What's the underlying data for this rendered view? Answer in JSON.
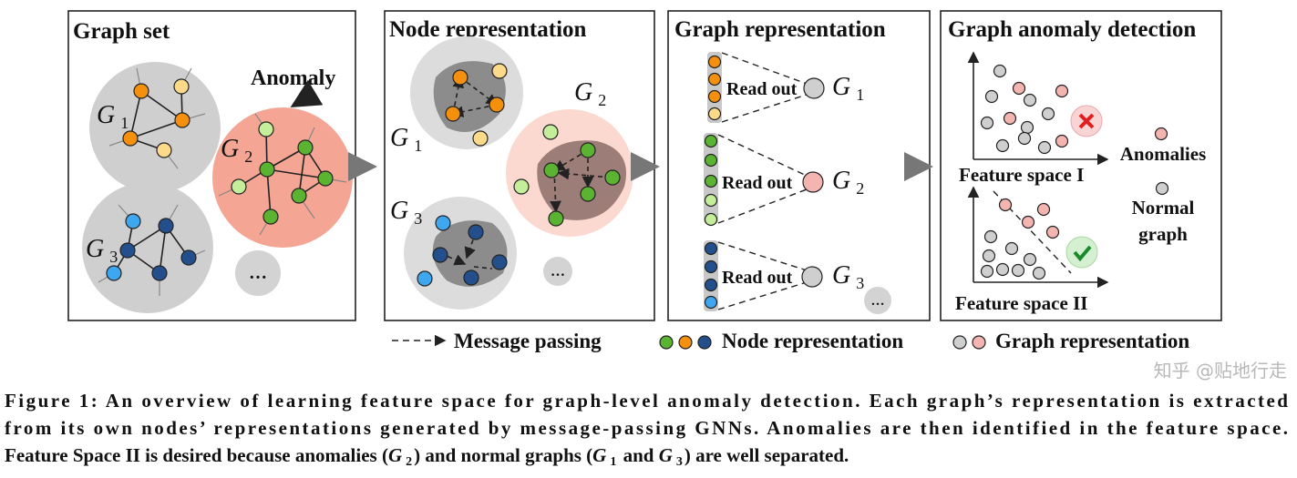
{
  "panels": {
    "graph_set": {
      "title": "Graph set",
      "anomaly_label": "Anomaly"
    },
    "node_representation": {
      "title": "Node representation"
    },
    "graph_representation": {
      "title": "Graph representation",
      "readout_label": "Read out"
    },
    "graph_anomaly_detection": {
      "title": "Graph anomaly detection",
      "space1": "Feature space I",
      "space2": "Feature space II",
      "legend_anomalies": "Anomalies",
      "legend_normal_1": "Normal",
      "legend_normal_2": "graph"
    }
  },
  "graph_labels": {
    "symbol": "G",
    "g1": "1",
    "g2": "2",
    "g3": "3"
  },
  "ellipsis": "…",
  "legend": {
    "message_passing": "Message passing",
    "node_representation": "Node representation",
    "graph_representation": "Graph representation"
  },
  "colors": {
    "orange": "#f5900f",
    "light_yellow": "#fdd98a",
    "green": "#5ab431",
    "light_green": "#c5ee9a",
    "dark_blue": "#23508c",
    "light_blue": "#3fa6f0",
    "normal_gray": "#cfcfcf",
    "anomaly_pink": "#f4b4b0",
    "anomaly_region": "#f4a593",
    "arrow_gray": "#6f6f6f"
  },
  "caption": {
    "line1": "Figure 1: An overview of learning feature space for graph-level anomaly detection. Each graph’s representation is extracted",
    "line2": "from its own nodes’ representations generated by message-passing GNNs. Anomalies are then identified in the feature space.",
    "line3_a": "Feature Space II is desired because anomalies (",
    "line3_b": ") and normal graphs (",
    "line3_c": " and ",
    "line3_d": ") are well separated."
  },
  "watermark": "知乎 @贴地行走"
}
